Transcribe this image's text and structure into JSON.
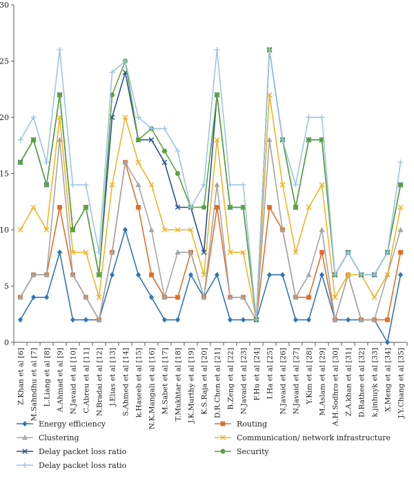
{
  "chart_data": {
    "type": "line",
    "title": "",
    "xlabel": "",
    "ylabel": "",
    "ylim": [
      0,
      30
    ],
    "yticks": [
      0,
      5,
      10,
      15,
      20,
      25,
      30
    ],
    "grid": false,
    "legend_position": "bottom",
    "categories": [
      "Z.Khan et al [6]",
      "M.Sahndhu et al [7]",
      "L.Liang et al [8]",
      "A.Ahmad et al [9]",
      "N.Javaid et al [10]",
      "C.Abreu et al [11]",
      "N.Bradai et al [12]",
      "J.Elias et al [13]",
      "S.Ahmed et al [14]",
      "k.Haseeb et al [15]",
      "N.K.Mangali et al [16]",
      "M.Sabet et al [17]",
      "T.Mukhtar et al [18]",
      "J.K.Murthy et al [19]",
      "K.S.Raja et al [20]",
      "D.R.Chen et al [21]",
      "B.Zeng et al [22]",
      "N.Javaid et al [23]",
      "F.Hu et al [24]",
      "I.Ha et al [25]",
      "N.Javaid et al [26]",
      "N.Javaid et al [27]",
      "Y.Kim et al [28]",
      "M.Aslam et al [29]",
      "A.H.Sodhro et al [30]",
      "Z.A.khan et al [31]",
      "D.Rathee et al [32]",
      "k.jinhuyk et al [33]",
      "X.Meng et al [34]",
      "J.Y.Chang et al [35]"
    ],
    "series": [
      {
        "name": "Energy efficiency",
        "color": "#2e75b6",
        "marker": "diamond",
        "values": [
          2,
          4,
          4,
          8,
          2,
          2,
          2,
          6,
          10,
          6,
          4,
          2,
          2,
          6,
          4,
          6,
          2,
          2,
          2,
          6,
          6,
          2,
          2,
          6,
          2,
          2,
          2,
          2,
          0,
          6
        ]
      },
      {
        "name": "Routing",
        "color": "#e46c25",
        "marker": "square",
        "values": [
          4,
          6,
          6,
          12,
          6,
          4,
          2,
          8,
          16,
          12,
          6,
          4,
          4,
          8,
          4,
          12,
          4,
          4,
          2,
          12,
          10,
          4,
          4,
          8,
          2,
          6,
          2,
          2,
          2,
          8
        ]
      },
      {
        "name": "Clustering",
        "color": "#a5a5a5",
        "marker": "triangle",
        "values": [
          4,
          6,
          6,
          18,
          6,
          4,
          2,
          8,
          16,
          14,
          10,
          4,
          8,
          8,
          4,
          14,
          4,
          4,
          2,
          18,
          10,
          4,
          6,
          10,
          2,
          6,
          2,
          2,
          6,
          10
        ]
      },
      {
        "name": "Communication/ network infrastructure",
        "color": "#f0b324",
        "marker": "x",
        "values": [
          10,
          12,
          10,
          20,
          8,
          8,
          4,
          14,
          20,
          16,
          14,
          10,
          10,
          10,
          6,
          18,
          8,
          8,
          2,
          22,
          14,
          8,
          12,
          14,
          4,
          6,
          6,
          4,
          6,
          12
        ]
      },
      {
        "name": "Delay packet loss ratio",
        "color": "#264f91",
        "marker": "x",
        "values": [
          16,
          18,
          14,
          22,
          10,
          12,
          6,
          20,
          24,
          18,
          18,
          16,
          12,
          12,
          8,
          22,
          12,
          12,
          2,
          26,
          18,
          12,
          18,
          18,
          6,
          8,
          6,
          6,
          8,
          14
        ]
      },
      {
        "name": "Security",
        "color": "#5aa43c",
        "marker": "circle",
        "values": [
          16,
          18,
          14,
          22,
          10,
          12,
          6,
          22,
          25,
          18,
          19,
          17,
          15,
          12,
          12,
          22,
          12,
          12,
          2,
          26,
          18,
          12,
          18,
          18,
          6,
          8,
          6,
          6,
          8,
          14
        ]
      },
      {
        "name": "Delay packet loss ratio",
        "color": "#9dc3e6",
        "marker": "plus",
        "values": [
          18,
          20,
          16,
          26,
          14,
          14,
          8,
          24,
          25,
          20,
          19,
          19,
          17,
          12,
          14,
          26,
          14,
          14,
          2,
          26,
          18,
          14,
          20,
          20,
          6,
          8,
          6,
          6,
          8,
          16
        ]
      }
    ],
    "legend_order": [
      0,
      1,
      2,
      3,
      4,
      5,
      6
    ]
  }
}
